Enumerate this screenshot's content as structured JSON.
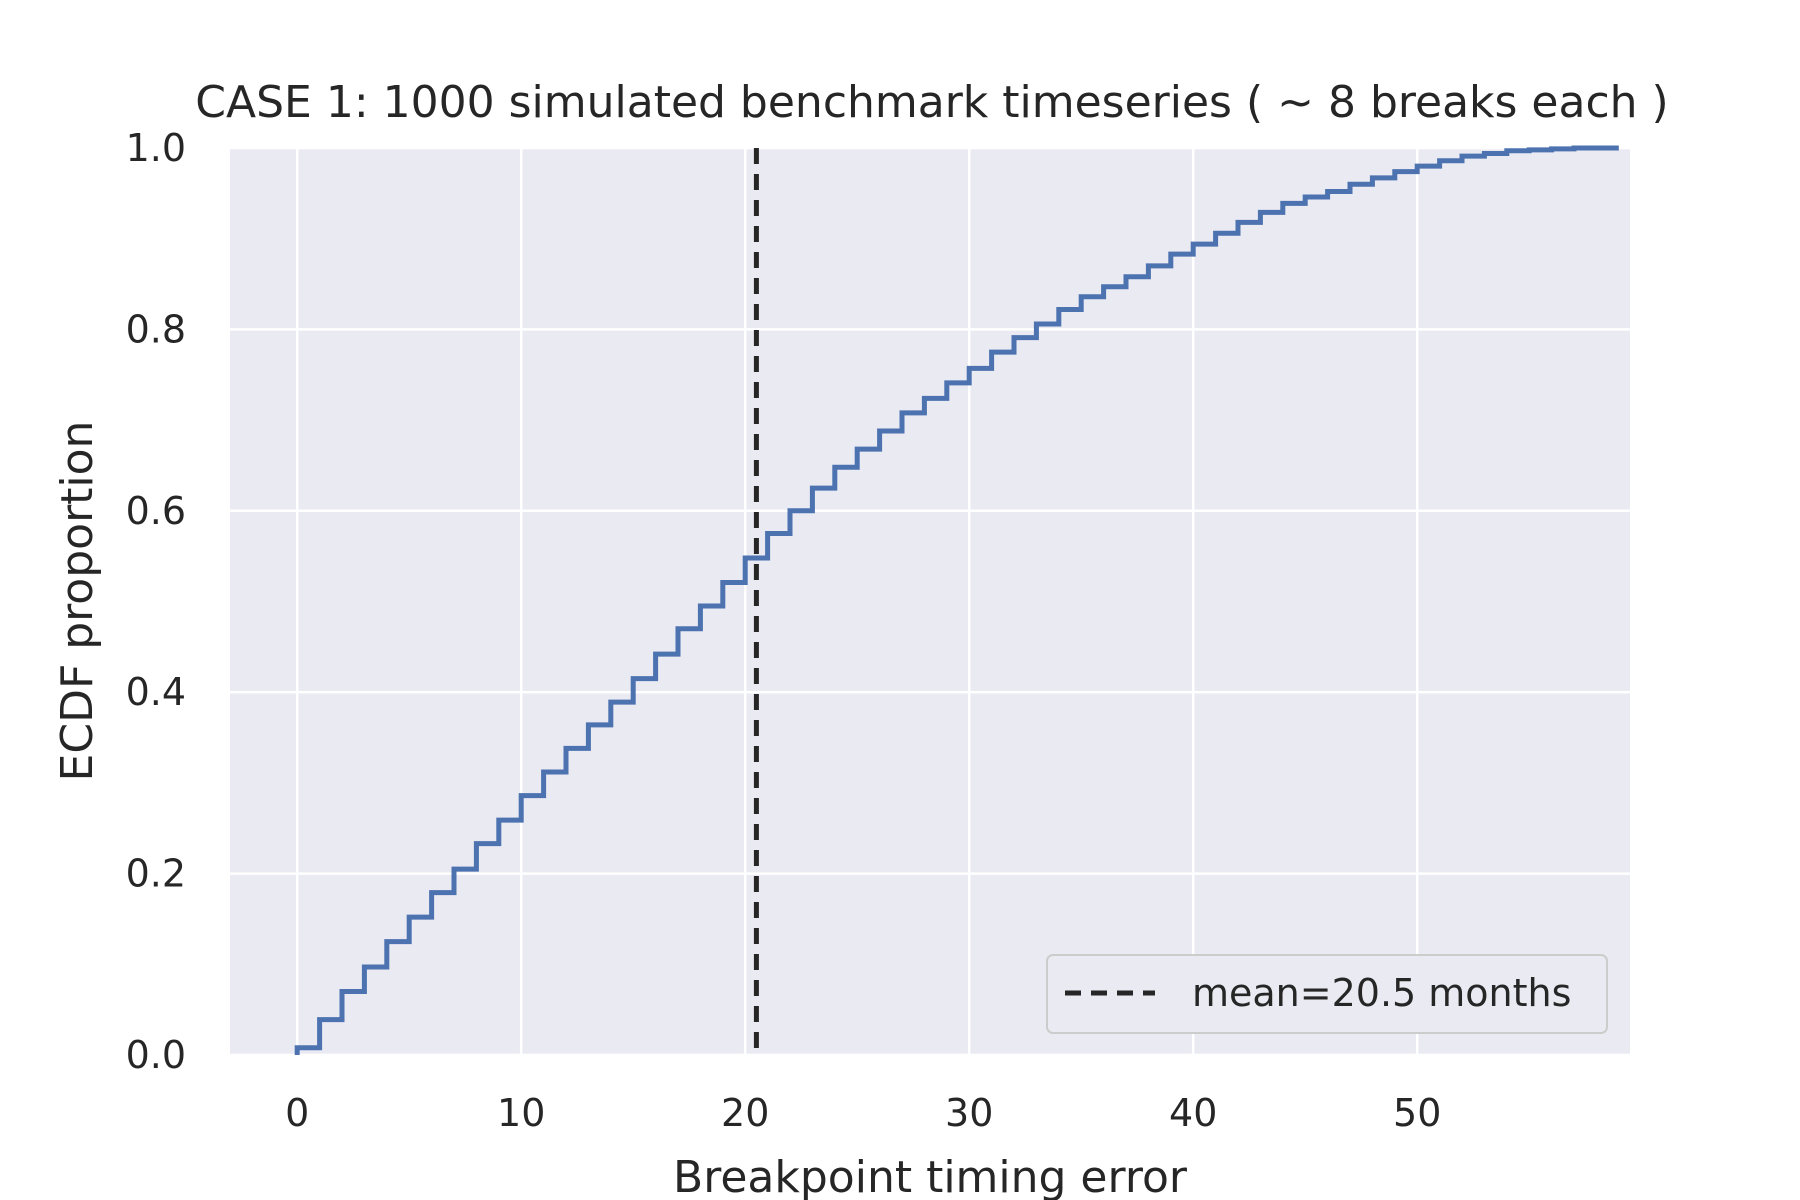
{
  "chart_data": {
    "type": "line",
    "subtype": "ecdf-step",
    "title": "CASE 1: 1000 simulated benchmark timeseries ( ~ 8 breaks each )",
    "xlabel": "Breakpoint timing error",
    "ylabel": "ECDF proportion",
    "xlim": [
      -3,
      59.5
    ],
    "ylim": [
      0.0,
      1.0
    ],
    "xticks": [
      0,
      10,
      20,
      30,
      40,
      50
    ],
    "xtick_labels": [
      "0",
      "10",
      "20",
      "30",
      "40",
      "50"
    ],
    "yticks": [
      0.0,
      0.2,
      0.4,
      0.6,
      0.8,
      1.0
    ],
    "ytick_labels": [
      "0.0",
      "0.2",
      "0.4",
      "0.6",
      "0.8",
      "1.0"
    ],
    "grid": true,
    "background": "#eaeaf2",
    "grid_color": "#ffffff",
    "legend_position": "lower-right",
    "series": [
      {
        "color": "#4c72b0",
        "x": [
          0,
          1,
          2,
          3,
          4,
          5,
          6,
          7,
          8,
          9,
          10,
          11,
          12,
          13,
          14,
          15,
          16,
          17,
          18,
          19,
          20,
          21,
          22,
          23,
          24,
          25,
          26,
          27,
          28,
          29,
          30,
          31,
          32,
          33,
          34,
          35,
          36,
          37,
          38,
          39,
          40,
          41,
          42,
          43,
          44,
          45,
          46,
          47,
          48,
          49,
          50,
          51,
          52,
          53,
          54,
          55,
          56,
          57,
          58
        ],
        "y": [
          0.008,
          0.039,
          0.07,
          0.097,
          0.125,
          0.152,
          0.179,
          0.205,
          0.233,
          0.259,
          0.286,
          0.312,
          0.338,
          0.364,
          0.389,
          0.415,
          0.442,
          0.47,
          0.495,
          0.521,
          0.548,
          0.575,
          0.6,
          0.625,
          0.648,
          0.668,
          0.688,
          0.708,
          0.724,
          0.741,
          0.757,
          0.775,
          0.791,
          0.806,
          0.822,
          0.836,
          0.847,
          0.858,
          0.87,
          0.883,
          0.894,
          0.906,
          0.918,
          0.929,
          0.939,
          0.946,
          0.952,
          0.96,
          0.967,
          0.974,
          0.98,
          0.986,
          0.991,
          0.994,
          0.997,
          0.998,
          0.999,
          1.0,
          1.0
        ]
      }
    ],
    "reference_line": {
      "x": 20.5,
      "color": "#262626",
      "style": "dashed",
      "label": "mean=20.5 months"
    }
  }
}
